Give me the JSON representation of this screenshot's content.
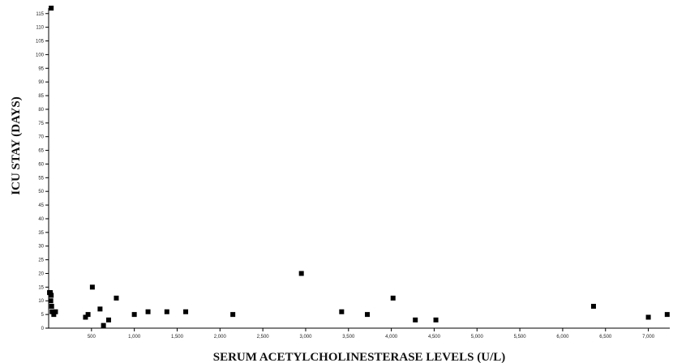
{
  "chart_data": {
    "type": "scatter",
    "title": "",
    "xlabel": "SERUM ACETYLCHOLINESTERASE LEVELS (U/L)",
    "ylabel": "ICU STAY (DAYS)",
    "xlim": [
      0,
      7250
    ],
    "ylim": [
      0,
      117
    ],
    "x_ticks": [
      500,
      1000,
      1500,
      2000,
      2500,
      3000,
      3500,
      4000,
      4500,
      5000,
      5500,
      6000,
      6500,
      7000
    ],
    "x_tick_labels": [
      "500",
      "1,000",
      "1,500",
      "2,000",
      "2,500",
      "3,000",
      "3,500",
      "4,000",
      "4,500",
      "5,000",
      "5,500",
      "6,000",
      "6,500",
      "7,000"
    ],
    "y_ticks": [
      0,
      5,
      10,
      15,
      20,
      25,
      30,
      35,
      40,
      45,
      50,
      55,
      60,
      65,
      70,
      75,
      80,
      85,
      90,
      95,
      100,
      105,
      110,
      115
    ],
    "y_tick_labels": [
      "0",
      "5",
      "10",
      "15",
      "20",
      "25",
      "30",
      "35",
      "40",
      "45",
      "50",
      "55",
      "60",
      "65",
      "70",
      "75",
      "80",
      "85",
      "90",
      "95",
      "100",
      "105",
      "110",
      "115"
    ],
    "grid": false,
    "legend": "none",
    "marker_color": "#000000",
    "series": [
      {
        "points": [
          {
            "x": 30,
            "y": 117
          },
          {
            "x": 10,
            "y": 13
          },
          {
            "x": 20,
            "y": 13
          },
          {
            "x": 30,
            "y": 12
          },
          {
            "x": 25,
            "y": 10
          },
          {
            "x": 35,
            "y": 8
          },
          {
            "x": 40,
            "y": 6
          },
          {
            "x": 60,
            "y": 5
          },
          {
            "x": 80,
            "y": 6
          },
          {
            "x": 430,
            "y": 4
          },
          {
            "x": 460,
            "y": 5
          },
          {
            "x": 510,
            "y": 15
          },
          {
            "x": 600,
            "y": 7
          },
          {
            "x": 640,
            "y": 1
          },
          {
            "x": 700,
            "y": 3
          },
          {
            "x": 790,
            "y": 11
          },
          {
            "x": 1000,
            "y": 5
          },
          {
            "x": 1160,
            "y": 6
          },
          {
            "x": 1380,
            "y": 6
          },
          {
            "x": 1600,
            "y": 6
          },
          {
            "x": 2150,
            "y": 5
          },
          {
            "x": 2950,
            "y": 20
          },
          {
            "x": 3420,
            "y": 6
          },
          {
            "x": 3720,
            "y": 5
          },
          {
            "x": 4020,
            "y": 11
          },
          {
            "x": 4280,
            "y": 3
          },
          {
            "x": 4520,
            "y": 3
          },
          {
            "x": 6360,
            "y": 8
          },
          {
            "x": 7000,
            "y": 4
          },
          {
            "x": 7220,
            "y": 5
          }
        ]
      }
    ]
  }
}
